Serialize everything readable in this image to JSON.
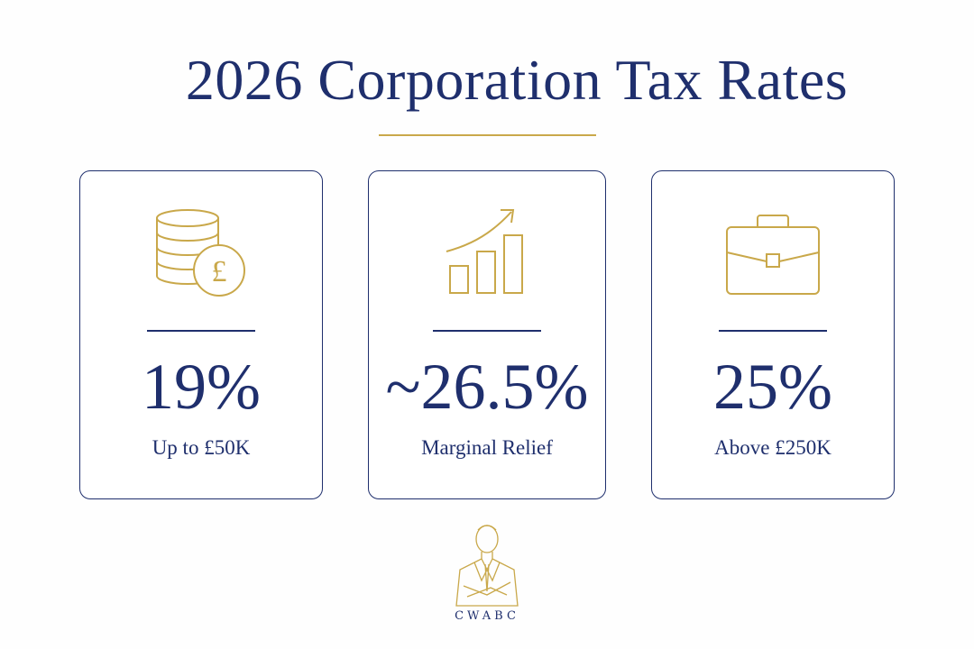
{
  "title": "2026 Corporation Tax Rates",
  "colors": {
    "navy": "#1f2f6d",
    "gold": "#c9a84a",
    "background": "#fefefe"
  },
  "cards": [
    {
      "icon": "coins-pound-icon",
      "rate": "19%",
      "description": "Up to £50K"
    },
    {
      "icon": "growth-chart-icon",
      "rate": "~26.5%",
      "description": "Marginal Relief"
    },
    {
      "icon": "briefcase-icon",
      "rate": "25%",
      "description": "Above £250K"
    }
  ],
  "brand": {
    "logo_icon": "businessman-icon",
    "name": "CWABC"
  }
}
